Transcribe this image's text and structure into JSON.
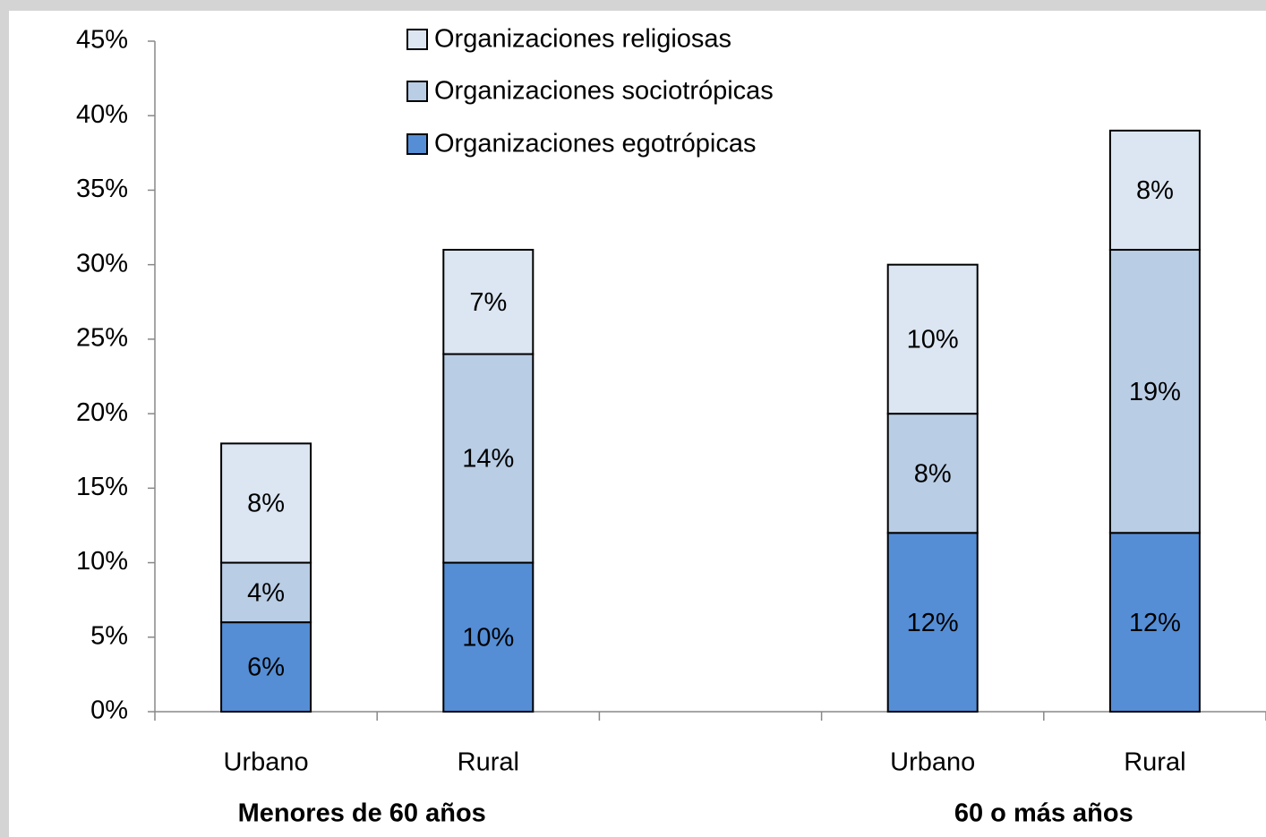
{
  "chart_data": {
    "type": "stacked_bar",
    "categories": [
      "Urbano",
      "Rural",
      null,
      "Urbano",
      "Rural"
    ],
    "groups": [
      "Menores de 60 años",
      "60 o  más años"
    ],
    "series": [
      {
        "name": "Organizaciones egotrópicas",
        "color": "#558ed5",
        "values": [
          6,
          10,
          null,
          12,
          12
        ],
        "value_labels": [
          "6%",
          "10%",
          null,
          "12%",
          "12%"
        ]
      },
      {
        "name": "Organizaciones sociotrópicas",
        "color": "#b9cde5",
        "values": [
          4,
          14,
          null,
          8,
          19
        ],
        "value_labels": [
          "4%",
          "14%",
          null,
          "8%",
          "19%"
        ]
      },
      {
        "name": "Organizaciones religiosas",
        "color": "#dce6f2",
        "values": [
          8,
          7,
          null,
          10,
          8
        ],
        "value_labels": [
          "8%",
          "7%",
          null,
          "10%",
          "8%"
        ]
      }
    ],
    "ylim": [
      0,
      45
    ],
    "yticks": [
      {
        "value": 0,
        "label": "0%"
      },
      {
        "value": 5,
        "label": "5%"
      },
      {
        "value": 10,
        "label": "10%"
      },
      {
        "value": 15,
        "label": "15%"
      },
      {
        "value": 20,
        "label": "20%"
      },
      {
        "value": 25,
        "label": "25%"
      },
      {
        "value": 30,
        "label": "30%"
      },
      {
        "value": 35,
        "label": "35%"
      },
      {
        "value": 40,
        "label": "40%"
      },
      {
        "value": 45,
        "label": "45%"
      }
    ],
    "legend": "top"
  }
}
